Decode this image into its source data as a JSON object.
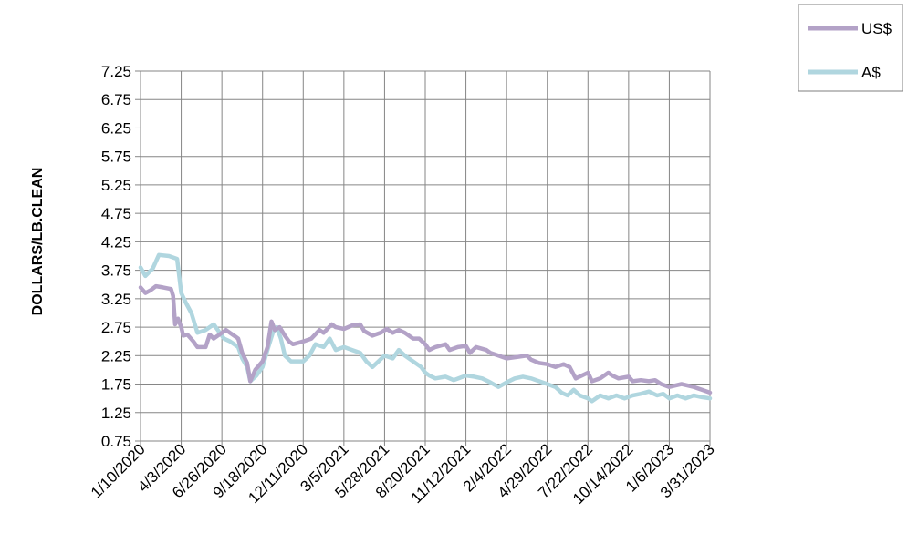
{
  "chart_data": {
    "type": "line",
    "title": "",
    "xlabel": "",
    "ylabel": "DOLLARS/LB.CLEAN",
    "ylim": [
      0.75,
      7.25
    ],
    "yticks": [
      "0.75",
      "1.25",
      "1.75",
      "2.25",
      "2.75",
      "3.25",
      "3.75",
      "4.25",
      "4.75",
      "5.25",
      "5.75",
      "6.25",
      "6.75",
      "7.25"
    ],
    "x_tick_labels": [
      "1/10/2020",
      "4/3/2020",
      "6/26/2020",
      "9/18/2020",
      "12/11/2020",
      "3/5/2021",
      "5/28/2021",
      "8/20/2021",
      "11/12/2021",
      "2/4/2022",
      "4/29/2022",
      "7/22/2022",
      "10/14/2022",
      "1/6/2023",
      "3/31/2023"
    ],
    "grid": true,
    "legend_position": "top-right",
    "series": [
      {
        "name": "US$",
        "color": "#b3a2c7",
        "values": [
          [
            0,
            3.45
          ],
          [
            0.12,
            3.35
          ],
          [
            0.25,
            3.4
          ],
          [
            0.38,
            3.47
          ],
          [
            0.55,
            3.45
          ],
          [
            0.75,
            3.42
          ],
          [
            0.8,
            3.3
          ],
          [
            0.85,
            2.8
          ],
          [
            0.92,
            2.9
          ],
          [
            1.0,
            2.75
          ],
          [
            1.05,
            2.6
          ],
          [
            1.15,
            2.62
          ],
          [
            1.3,
            2.5
          ],
          [
            1.4,
            2.4
          ],
          [
            1.6,
            2.4
          ],
          [
            1.7,
            2.62
          ],
          [
            1.8,
            2.55
          ],
          [
            2.0,
            2.65
          ],
          [
            2.1,
            2.7
          ],
          [
            2.3,
            2.6
          ],
          [
            2.4,
            2.55
          ],
          [
            2.5,
            2.3
          ],
          [
            2.62,
            2.12
          ],
          [
            2.7,
            1.8
          ],
          [
            2.82,
            2.0
          ],
          [
            3.0,
            2.15
          ],
          [
            3.12,
            2.4
          ],
          [
            3.22,
            2.85
          ],
          [
            3.3,
            2.7
          ],
          [
            3.42,
            2.75
          ],
          [
            3.55,
            2.6
          ],
          [
            3.65,
            2.5
          ],
          [
            3.75,
            2.45
          ],
          [
            4.0,
            2.5
          ],
          [
            4.2,
            2.55
          ],
          [
            4.4,
            2.7
          ],
          [
            4.5,
            2.65
          ],
          [
            4.7,
            2.8
          ],
          [
            4.8,
            2.75
          ],
          [
            5.0,
            2.72
          ],
          [
            5.2,
            2.78
          ],
          [
            5.4,
            2.8
          ],
          [
            5.5,
            2.68
          ],
          [
            5.7,
            2.6
          ],
          [
            5.9,
            2.65
          ],
          [
            6.05,
            2.72
          ],
          [
            6.2,
            2.65
          ],
          [
            6.35,
            2.7
          ],
          [
            6.5,
            2.65
          ],
          [
            6.7,
            2.55
          ],
          [
            6.85,
            2.55
          ],
          [
            7.0,
            2.45
          ],
          [
            7.1,
            2.35
          ],
          [
            7.25,
            2.4
          ],
          [
            7.5,
            2.45
          ],
          [
            7.6,
            2.35
          ],
          [
            7.8,
            2.4
          ],
          [
            8.0,
            2.42
          ],
          [
            8.1,
            2.3
          ],
          [
            8.25,
            2.4
          ],
          [
            8.5,
            2.35
          ],
          [
            8.6,
            2.3
          ],
          [
            8.8,
            2.25
          ],
          [
            9.0,
            2.2
          ],
          [
            9.2,
            2.22
          ],
          [
            9.5,
            2.25
          ],
          [
            9.6,
            2.18
          ],
          [
            9.8,
            2.12
          ],
          [
            10.0,
            2.1
          ],
          [
            10.2,
            2.05
          ],
          [
            10.4,
            2.1
          ],
          [
            10.55,
            2.05
          ],
          [
            10.7,
            1.85
          ],
          [
            10.85,
            1.9
          ],
          [
            11.0,
            1.95
          ],
          [
            11.1,
            1.8
          ],
          [
            11.3,
            1.85
          ],
          [
            11.5,
            1.95
          ],
          [
            11.6,
            1.9
          ],
          [
            11.75,
            1.85
          ],
          [
            12.0,
            1.88
          ],
          [
            12.1,
            1.8
          ],
          [
            12.3,
            1.82
          ],
          [
            12.5,
            1.8
          ],
          [
            12.65,
            1.82
          ],
          [
            12.8,
            1.75
          ],
          [
            13.0,
            1.7
          ],
          [
            13.3,
            1.75
          ],
          [
            13.6,
            1.7
          ],
          [
            13.8,
            1.65
          ],
          [
            14.0,
            1.6
          ]
        ]
      },
      {
        "name": "A$",
        "color": "#b0d6df",
        "values": [
          [
            0,
            3.8
          ],
          [
            0.12,
            3.65
          ],
          [
            0.3,
            3.78
          ],
          [
            0.45,
            4.02
          ],
          [
            0.7,
            4.0
          ],
          [
            0.9,
            3.95
          ],
          [
            1.0,
            3.35
          ],
          [
            1.1,
            3.2
          ],
          [
            1.25,
            3.0
          ],
          [
            1.4,
            2.65
          ],
          [
            1.6,
            2.7
          ],
          [
            1.8,
            2.8
          ],
          [
            1.95,
            2.65
          ],
          [
            2.05,
            2.55
          ],
          [
            2.2,
            2.5
          ],
          [
            2.4,
            2.4
          ],
          [
            2.5,
            2.2
          ],
          [
            2.62,
            2.05
          ],
          [
            2.7,
            1.8
          ],
          [
            2.85,
            1.9
          ],
          [
            3.0,
            2.05
          ],
          [
            3.12,
            2.35
          ],
          [
            3.25,
            2.65
          ],
          [
            3.35,
            2.75
          ],
          [
            3.45,
            2.55
          ],
          [
            3.55,
            2.25
          ],
          [
            3.7,
            2.15
          ],
          [
            4.0,
            2.15
          ],
          [
            4.15,
            2.25
          ],
          [
            4.3,
            2.45
          ],
          [
            4.5,
            2.4
          ],
          [
            4.65,
            2.55
          ],
          [
            4.8,
            2.35
          ],
          [
            5.0,
            2.4
          ],
          [
            5.2,
            2.35
          ],
          [
            5.4,
            2.3
          ],
          [
            5.55,
            2.15
          ],
          [
            5.7,
            2.05
          ],
          [
            5.85,
            2.15
          ],
          [
            6.0,
            2.25
          ],
          [
            6.2,
            2.2
          ],
          [
            6.35,
            2.35
          ],
          [
            6.5,
            2.25
          ],
          [
            6.7,
            2.15
          ],
          [
            6.9,
            2.05
          ],
          [
            7.0,
            1.95
          ],
          [
            7.1,
            1.9
          ],
          [
            7.25,
            1.85
          ],
          [
            7.5,
            1.88
          ],
          [
            7.7,
            1.82
          ],
          [
            8.0,
            1.9
          ],
          [
            8.2,
            1.88
          ],
          [
            8.4,
            1.85
          ],
          [
            8.6,
            1.78
          ],
          [
            8.8,
            1.7
          ],
          [
            9.0,
            1.78
          ],
          [
            9.2,
            1.85
          ],
          [
            9.4,
            1.88
          ],
          [
            9.6,
            1.85
          ],
          [
            9.8,
            1.8
          ],
          [
            10.0,
            1.75
          ],
          [
            10.2,
            1.7
          ],
          [
            10.35,
            1.6
          ],
          [
            10.5,
            1.55
          ],
          [
            10.65,
            1.65
          ],
          [
            10.8,
            1.55
          ],
          [
            11.0,
            1.5
          ],
          [
            11.1,
            1.45
          ],
          [
            11.3,
            1.55
          ],
          [
            11.5,
            1.5
          ],
          [
            11.7,
            1.55
          ],
          [
            11.9,
            1.5
          ],
          [
            12.1,
            1.55
          ],
          [
            12.3,
            1.58
          ],
          [
            12.5,
            1.62
          ],
          [
            12.7,
            1.55
          ],
          [
            12.85,
            1.58
          ],
          [
            13.0,
            1.5
          ],
          [
            13.2,
            1.55
          ],
          [
            13.4,
            1.5
          ],
          [
            13.6,
            1.55
          ],
          [
            13.8,
            1.52
          ],
          [
            14.0,
            1.5
          ]
        ]
      }
    ]
  }
}
